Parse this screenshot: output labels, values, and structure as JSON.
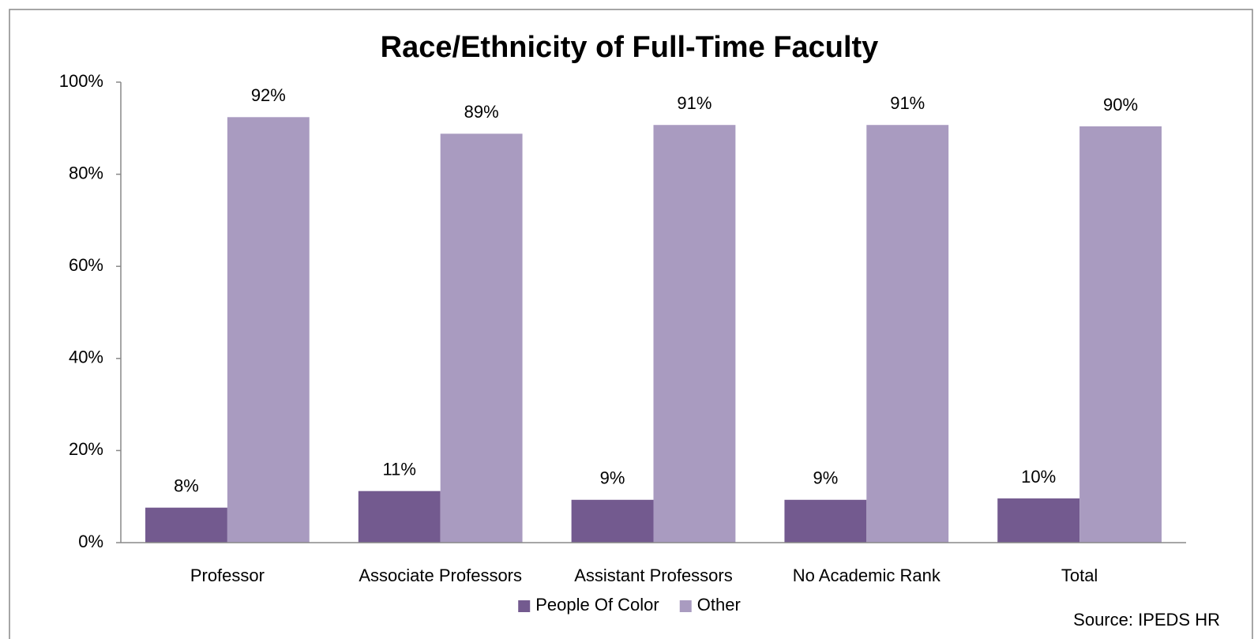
{
  "chart_data": {
    "type": "bar",
    "title": "Race/Ethnicity of Full-Time Faculty",
    "categories": [
      "Professor",
      "Associate Professors",
      "Assistant Professors",
      "No Academic Rank",
      "Total"
    ],
    "series": [
      {
        "name": "People Of Color",
        "color": "#735a8f",
        "values": [
          7.6,
          11.2,
          9.3,
          9.3,
          9.6
        ],
        "value_labels": [
          "8%",
          "11%",
          "9%",
          "9%",
          "10%"
        ]
      },
      {
        "name": "Other",
        "color": "#a99bc0",
        "values": [
          92.4,
          88.8,
          90.7,
          90.7,
          90.4
        ],
        "value_labels": [
          "92%",
          "89%",
          "91%",
          "91%",
          "90%"
        ]
      }
    ],
    "ylim": [
      0,
      100
    ],
    "yticks": [
      {
        "value": 0,
        "label": "0%"
      },
      {
        "value": 20,
        "label": "20%"
      },
      {
        "value": 40,
        "label": "40%"
      },
      {
        "value": 60,
        "label": "60%"
      },
      {
        "value": 80,
        "label": "80%"
      },
      {
        "value": 100,
        "label": "100%"
      }
    ],
    "grid": false,
    "legend": "bottom",
    "source": "Source: IPEDS HR"
  }
}
